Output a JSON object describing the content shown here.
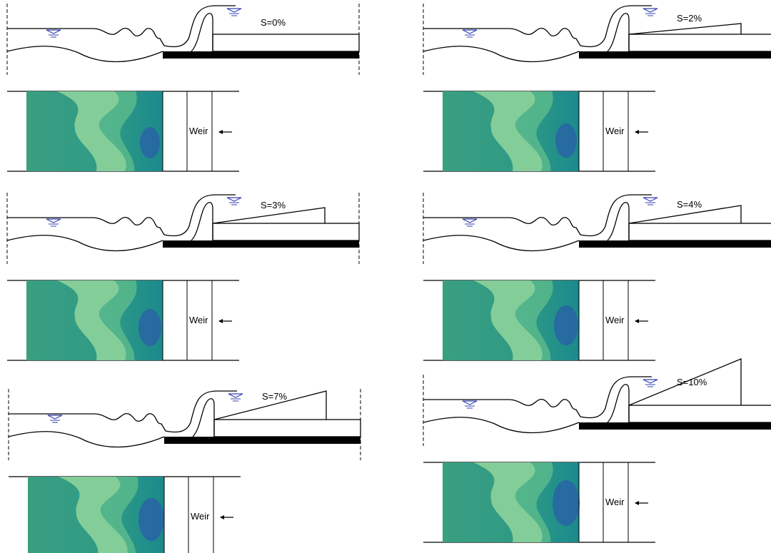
{
  "panels": [
    {
      "slope_label": "S=0%",
      "weir_label": "Weir"
    },
    {
      "slope_label": "S=2%",
      "weir_label": "Weir"
    },
    {
      "slope_label": "S=3%",
      "weir_label": "Weir"
    },
    {
      "slope_label": "S=4%",
      "weir_label": "Weir"
    },
    {
      "slope_label": "S=7%",
      "weir_label": "Weir"
    },
    {
      "slope_label": "S=10%",
      "weir_label": "Weir"
    }
  ]
}
